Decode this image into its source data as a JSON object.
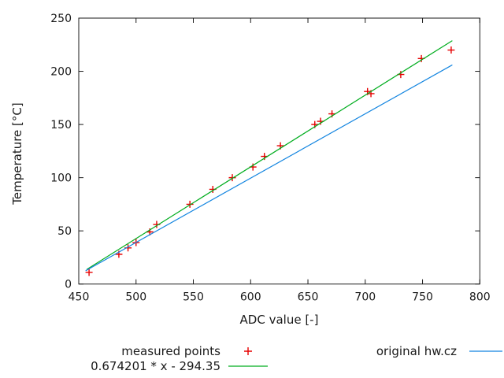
{
  "chart_data": {
    "type": "scatter",
    "title": "",
    "xlabel": "ADC value [-]",
    "ylabel": "Temperature [°C]",
    "xlim": [
      450,
      800
    ],
    "ylim": [
      0,
      250
    ],
    "xticks": [
      450,
      500,
      550,
      600,
      650,
      700,
      750,
      800
    ],
    "yticks": [
      0,
      50,
      100,
      150,
      200,
      250
    ],
    "grid": false,
    "legend_position": "below-plot, two columns",
    "frame_color": "#1a1a1a",
    "series": [
      {
        "name": "measured points",
        "type": "points",
        "marker": "plus",
        "color": "#e60000",
        "points": [
          [
            459,
            11
          ],
          [
            485,
            28
          ],
          [
            493,
            34
          ],
          [
            500,
            39
          ],
          [
            512,
            49
          ],
          [
            518,
            56
          ],
          [
            547,
            75
          ],
          [
            567,
            89
          ],
          [
            584,
            100
          ],
          [
            602,
            110
          ],
          [
            612,
            120
          ],
          [
            626,
            130
          ],
          [
            656,
            150
          ],
          [
            661,
            153
          ],
          [
            671,
            160
          ],
          [
            702,
            181
          ],
          [
            705,
            179
          ],
          [
            731,
            197
          ],
          [
            749,
            212
          ],
          [
            775,
            220
          ]
        ]
      },
      {
        "name": "0.674201 * x - 294.35",
        "type": "line",
        "color": "#00ad1e",
        "slope": 0.674201,
        "intercept": -294.35,
        "x_range": [
          457,
          776
        ]
      },
      {
        "name": "original hw.cz",
        "type": "line",
        "color": "#1385e0",
        "endpoints": [
          [
            456,
            12.5
          ],
          [
            776,
            206
          ]
        ]
      }
    ]
  }
}
